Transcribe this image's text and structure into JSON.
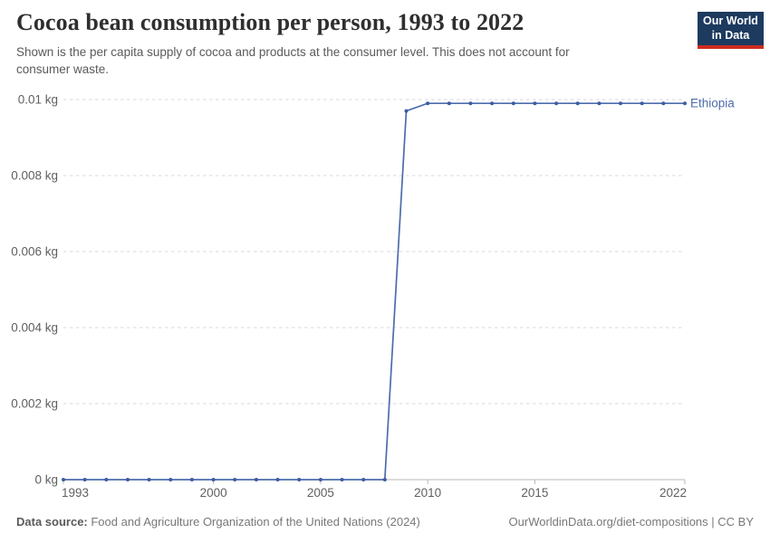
{
  "header": {
    "title": "Cocoa bean consumption per person, 1993 to 2022",
    "subtitle_line1": "Shown is the per capita supply of cocoa and products at the consumer level. This does not account for",
    "subtitle_line2": "consumer waste."
  },
  "logo": {
    "line1": "Our World",
    "line2": "in Data",
    "bg_color": "#1d3a5f",
    "stripe_color": "#cc2c1f"
  },
  "chart_data": {
    "type": "line",
    "title": "Cocoa bean consumption per person, 1993 to 2022",
    "xlabel": "",
    "ylabel": "",
    "unit": "kg",
    "grid": "horizontal-dashed",
    "legend": "end-of-line-label",
    "ylim": [
      0,
      0.01
    ],
    "x": [
      1993,
      1994,
      1995,
      1996,
      1997,
      1998,
      1999,
      2000,
      2001,
      2002,
      2003,
      2004,
      2005,
      2006,
      2007,
      2008,
      2009,
      2010,
      2011,
      2012,
      2013,
      2014,
      2015,
      2016,
      2017,
      2018,
      2019,
      2020,
      2021,
      2022
    ],
    "series": [
      {
        "name": "Ethiopia",
        "color": "#4d6cab",
        "point_color": "#3c5ca2",
        "values": [
          0,
          0,
          0,
          0,
          0,
          0,
          0,
          0,
          0,
          0,
          0,
          0,
          0,
          0,
          0,
          0,
          0.0097,
          0.0099,
          0.0099,
          0.0099,
          0.0099,
          0.0099,
          0.0099,
          0.0099,
          0.0099,
          0.0099,
          0.0099,
          0.0099,
          0.0099,
          0.0099
        ]
      }
    ],
    "yticks": [
      {
        "value": 0,
        "label": "0 kg"
      },
      {
        "value": 0.002,
        "label": "0.002 kg"
      },
      {
        "value": 0.004,
        "label": "0.004 kg"
      },
      {
        "value": 0.006,
        "label": "0.006 kg"
      },
      {
        "value": 0.008,
        "label": "0.008 kg"
      },
      {
        "value": 0.01,
        "label": "0.01 kg"
      }
    ],
    "xticks": [
      {
        "value": 1993,
        "label": "1993"
      },
      {
        "value": 2000,
        "label": "2000"
      },
      {
        "value": 2005,
        "label": "2005"
      },
      {
        "value": 2010,
        "label": "2010"
      },
      {
        "value": 2015,
        "label": "2015"
      },
      {
        "value": 2022,
        "label": "2022"
      }
    ],
    "axis_text_color": "#606060",
    "gridline_color": "#d8d8d8",
    "axis_line_color": "#b8b8b8"
  },
  "footer": {
    "datasource_label": "Data source:",
    "datasource_text": " Food and Agriculture Organization of the United Nations (2024)",
    "rights": "OurWorldinData.org/diet-compositions | CC BY"
  }
}
